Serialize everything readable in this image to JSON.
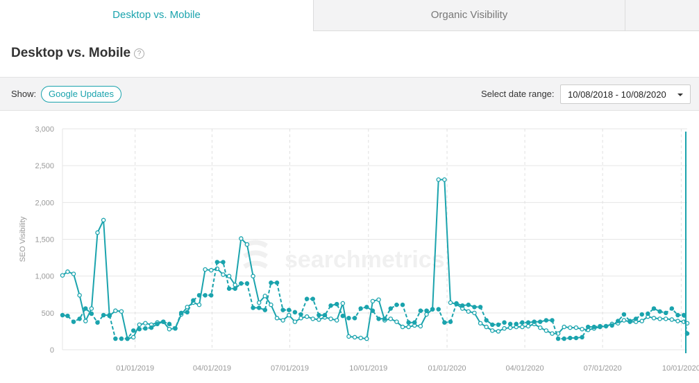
{
  "tabs": [
    {
      "label": "Desktop vs. Mobile",
      "active": true
    },
    {
      "label": "Organic Visibility",
      "active": false
    }
  ],
  "page": {
    "title": "Desktop vs. Mobile",
    "help_icon": "question-circle-icon"
  },
  "toolbar": {
    "show_label": "Show:",
    "google_updates_label": "Google Updates",
    "date_range_label": "Select date range:",
    "date_range_value": "10/08/2018 - 10/08/2020"
  },
  "watermark": "searchmetrics",
  "colors": {
    "accent": "#1aa3ad",
    "tab_inactive_bg": "#f3f3f4"
  },
  "chart_data": {
    "type": "line",
    "ylabel": "SEO Visibility",
    "ylim": [
      0,
      3000
    ],
    "yticks": [
      "0",
      "500",
      "1,000",
      "1,500",
      "2,000",
      "2,500",
      "3,000"
    ],
    "yticks_values": [
      0,
      500,
      1000,
      1500,
      2000,
      2500,
      3000
    ],
    "xlim": [
      "2018-10-08",
      "2020-10-08"
    ],
    "xticks": [
      "01/01/2019",
      "04/01/2019",
      "07/01/2019",
      "10/01/2019",
      "01/01/2020",
      "04/01/2020",
      "07/01/2020",
      "10/01/2020"
    ],
    "xticks_dates": [
      "2019-01-01",
      "2019-04-01",
      "2019-07-01",
      "2019-10-01",
      "2020-01-01",
      "2020-04-01",
      "2020-07-01",
      "2020-10-01"
    ],
    "grid": true,
    "series": [
      {
        "style": "solid-open-markers",
        "x": [
          "2018-10-08",
          "2018-10-14",
          "2018-10-21",
          "2018-10-28",
          "2018-11-04",
          "2018-11-11",
          "2018-11-18",
          "2018-11-25",
          "2018-12-02",
          "2018-12-09",
          "2018-12-16",
          "2018-12-23",
          "2018-12-30",
          "2019-01-06",
          "2019-01-13",
          "2019-01-20",
          "2019-01-27",
          "2019-02-03",
          "2019-02-10",
          "2019-02-17",
          "2019-02-24",
          "2019-03-03",
          "2019-03-10",
          "2019-03-17",
          "2019-03-24",
          "2019-03-31",
          "2019-04-07",
          "2019-04-14",
          "2019-04-21",
          "2019-04-28",
          "2019-05-05",
          "2019-05-12",
          "2019-05-19",
          "2019-05-26",
          "2019-06-02",
          "2019-06-09",
          "2019-06-16",
          "2019-06-23",
          "2019-06-30",
          "2019-07-07",
          "2019-07-14",
          "2019-07-21",
          "2019-07-28",
          "2019-08-04",
          "2019-08-11",
          "2019-08-18",
          "2019-08-25",
          "2019-09-01",
          "2019-09-08",
          "2019-09-15",
          "2019-09-22",
          "2019-09-29",
          "2019-10-06",
          "2019-10-13",
          "2019-10-20",
          "2019-10-27",
          "2019-11-03",
          "2019-11-10",
          "2019-11-17",
          "2019-11-24",
          "2019-12-01",
          "2019-12-08",
          "2019-12-15",
          "2019-12-22",
          "2019-12-29",
          "2020-01-05",
          "2020-01-12",
          "2020-01-19",
          "2020-01-26",
          "2020-02-02",
          "2020-02-09",
          "2020-02-16",
          "2020-02-23",
          "2020-03-01",
          "2020-03-08",
          "2020-03-15",
          "2020-03-22",
          "2020-03-29",
          "2020-04-05",
          "2020-04-12",
          "2020-04-19",
          "2020-04-26",
          "2020-05-03",
          "2020-05-10",
          "2020-05-17",
          "2020-05-24",
          "2020-05-31",
          "2020-06-07",
          "2020-06-14",
          "2020-06-21",
          "2020-06-28",
          "2020-07-05",
          "2020-07-12",
          "2020-07-19",
          "2020-07-26",
          "2020-08-02",
          "2020-08-09",
          "2020-08-16",
          "2020-08-23",
          "2020-08-30",
          "2020-09-06",
          "2020-09-13",
          "2020-09-20",
          "2020-09-27",
          "2020-10-04",
          "2020-10-08"
        ],
        "y": [
          1010,
          1060,
          1030,
          740,
          390,
          560,
          1590,
          1760,
          460,
          530,
          520,
          150,
          170,
          340,
          360,
          340,
          370,
          380,
          280,
          290,
          480,
          580,
          640,
          610,
          1090,
          1080,
          1100,
          1020,
          1000,
          880,
          1510,
          1430,
          1000,
          640,
          730,
          610,
          430,
          400,
          470,
          380,
          430,
          450,
          420,
          410,
          440,
          420,
          400,
          630,
          180,
          170,
          160,
          150,
          660,
          680,
          400,
          420,
          380,
          310,
          310,
          330,
          320,
          480,
          550,
          2310,
          2310,
          640,
          620,
          560,
          520,
          500,
          360,
          310,
          260,
          250,
          290,
          300,
          310,
          310,
          320,
          350,
          300,
          260,
          220,
          220,
          310,
          300,
          300,
          280,
          270,
          290,
          310,
          320,
          350,
          360,
          400,
          380,
          380,
          390,
          450,
          430,
          420,
          420,
          410,
          390,
          380,
          360
        ],
        "y_note": "last point at 2020-10-08"
      },
      {
        "style": "dashed-filled-markers",
        "x": [
          "2018-10-08",
          "2018-10-14",
          "2018-10-21",
          "2018-10-28",
          "2018-11-04",
          "2018-11-11",
          "2018-11-18",
          "2018-11-25",
          "2018-12-02",
          "2018-12-09",
          "2018-12-16",
          "2018-12-23",
          "2018-12-30",
          "2019-01-06",
          "2019-01-13",
          "2019-01-20",
          "2019-01-27",
          "2019-02-03",
          "2019-02-10",
          "2019-02-17",
          "2019-02-24",
          "2019-03-03",
          "2019-03-10",
          "2019-03-17",
          "2019-03-24",
          "2019-03-31",
          "2019-04-07",
          "2019-04-14",
          "2019-04-21",
          "2019-04-28",
          "2019-05-05",
          "2019-05-12",
          "2019-05-19",
          "2019-05-26",
          "2019-06-02",
          "2019-06-09",
          "2019-06-16",
          "2019-06-23",
          "2019-06-30",
          "2019-07-07",
          "2019-07-14",
          "2019-07-21",
          "2019-07-28",
          "2019-08-04",
          "2019-08-11",
          "2019-08-18",
          "2019-08-25",
          "2019-09-01",
          "2019-09-08",
          "2019-09-15",
          "2019-09-22",
          "2019-09-29",
          "2019-10-06",
          "2019-10-13",
          "2019-10-20",
          "2019-10-27",
          "2019-11-03",
          "2019-11-10",
          "2019-11-17",
          "2019-11-24",
          "2019-12-01",
          "2019-12-08",
          "2019-12-15",
          "2019-12-22",
          "2019-12-29",
          "2020-01-05",
          "2020-01-12",
          "2020-01-19",
          "2020-01-26",
          "2020-02-02",
          "2020-02-09",
          "2020-02-16",
          "2020-02-23",
          "2020-03-01",
          "2020-03-08",
          "2020-03-15",
          "2020-03-22",
          "2020-03-29",
          "2020-04-05",
          "2020-04-12",
          "2020-04-19",
          "2020-04-26",
          "2020-05-03",
          "2020-05-10",
          "2020-05-17",
          "2020-05-24",
          "2020-05-31",
          "2020-06-07",
          "2020-06-14",
          "2020-06-21",
          "2020-06-28",
          "2020-07-05",
          "2020-07-12",
          "2020-07-19",
          "2020-07-26",
          "2020-08-02",
          "2020-08-09",
          "2020-08-16",
          "2020-08-23",
          "2020-08-30",
          "2020-09-06",
          "2020-09-13",
          "2020-09-20",
          "2020-09-27",
          "2020-10-04",
          "2020-10-08"
        ],
        "y": [
          470,
          460,
          380,
          420,
          560,
          490,
          370,
          470,
          470,
          150,
          150,
          150,
          260,
          280,
          290,
          300,
          350,
          380,
          350,
          290,
          500,
          510,
          670,
          740,
          740,
          740,
          1190,
          1190,
          830,
          830,
          900,
          900,
          570,
          570,
          540,
          910,
          910,
          540,
          540,
          510,
          480,
          690,
          690,
          470,
          470,
          600,
          620,
          460,
          430,
          430,
          560,
          580,
          530,
          420,
          420,
          560,
          610,
          610,
          370,
          370,
          530,
          530,
          550,
          550,
          370,
          380,
          630,
          600,
          610,
          580,
          580,
          400,
          340,
          340,
          370,
          350,
          350,
          370,
          370,
          380,
          380,
          400,
          400,
          150,
          150,
          160,
          160,
          170,
          310,
          310,
          320,
          320,
          330,
          390,
          480,
          390,
          420,
          480,
          490,
          560,
          520,
          500,
          560,
          470,
          470,
          220
        ],
        "y_note": "last point at 2020-10-08"
      }
    ]
  }
}
